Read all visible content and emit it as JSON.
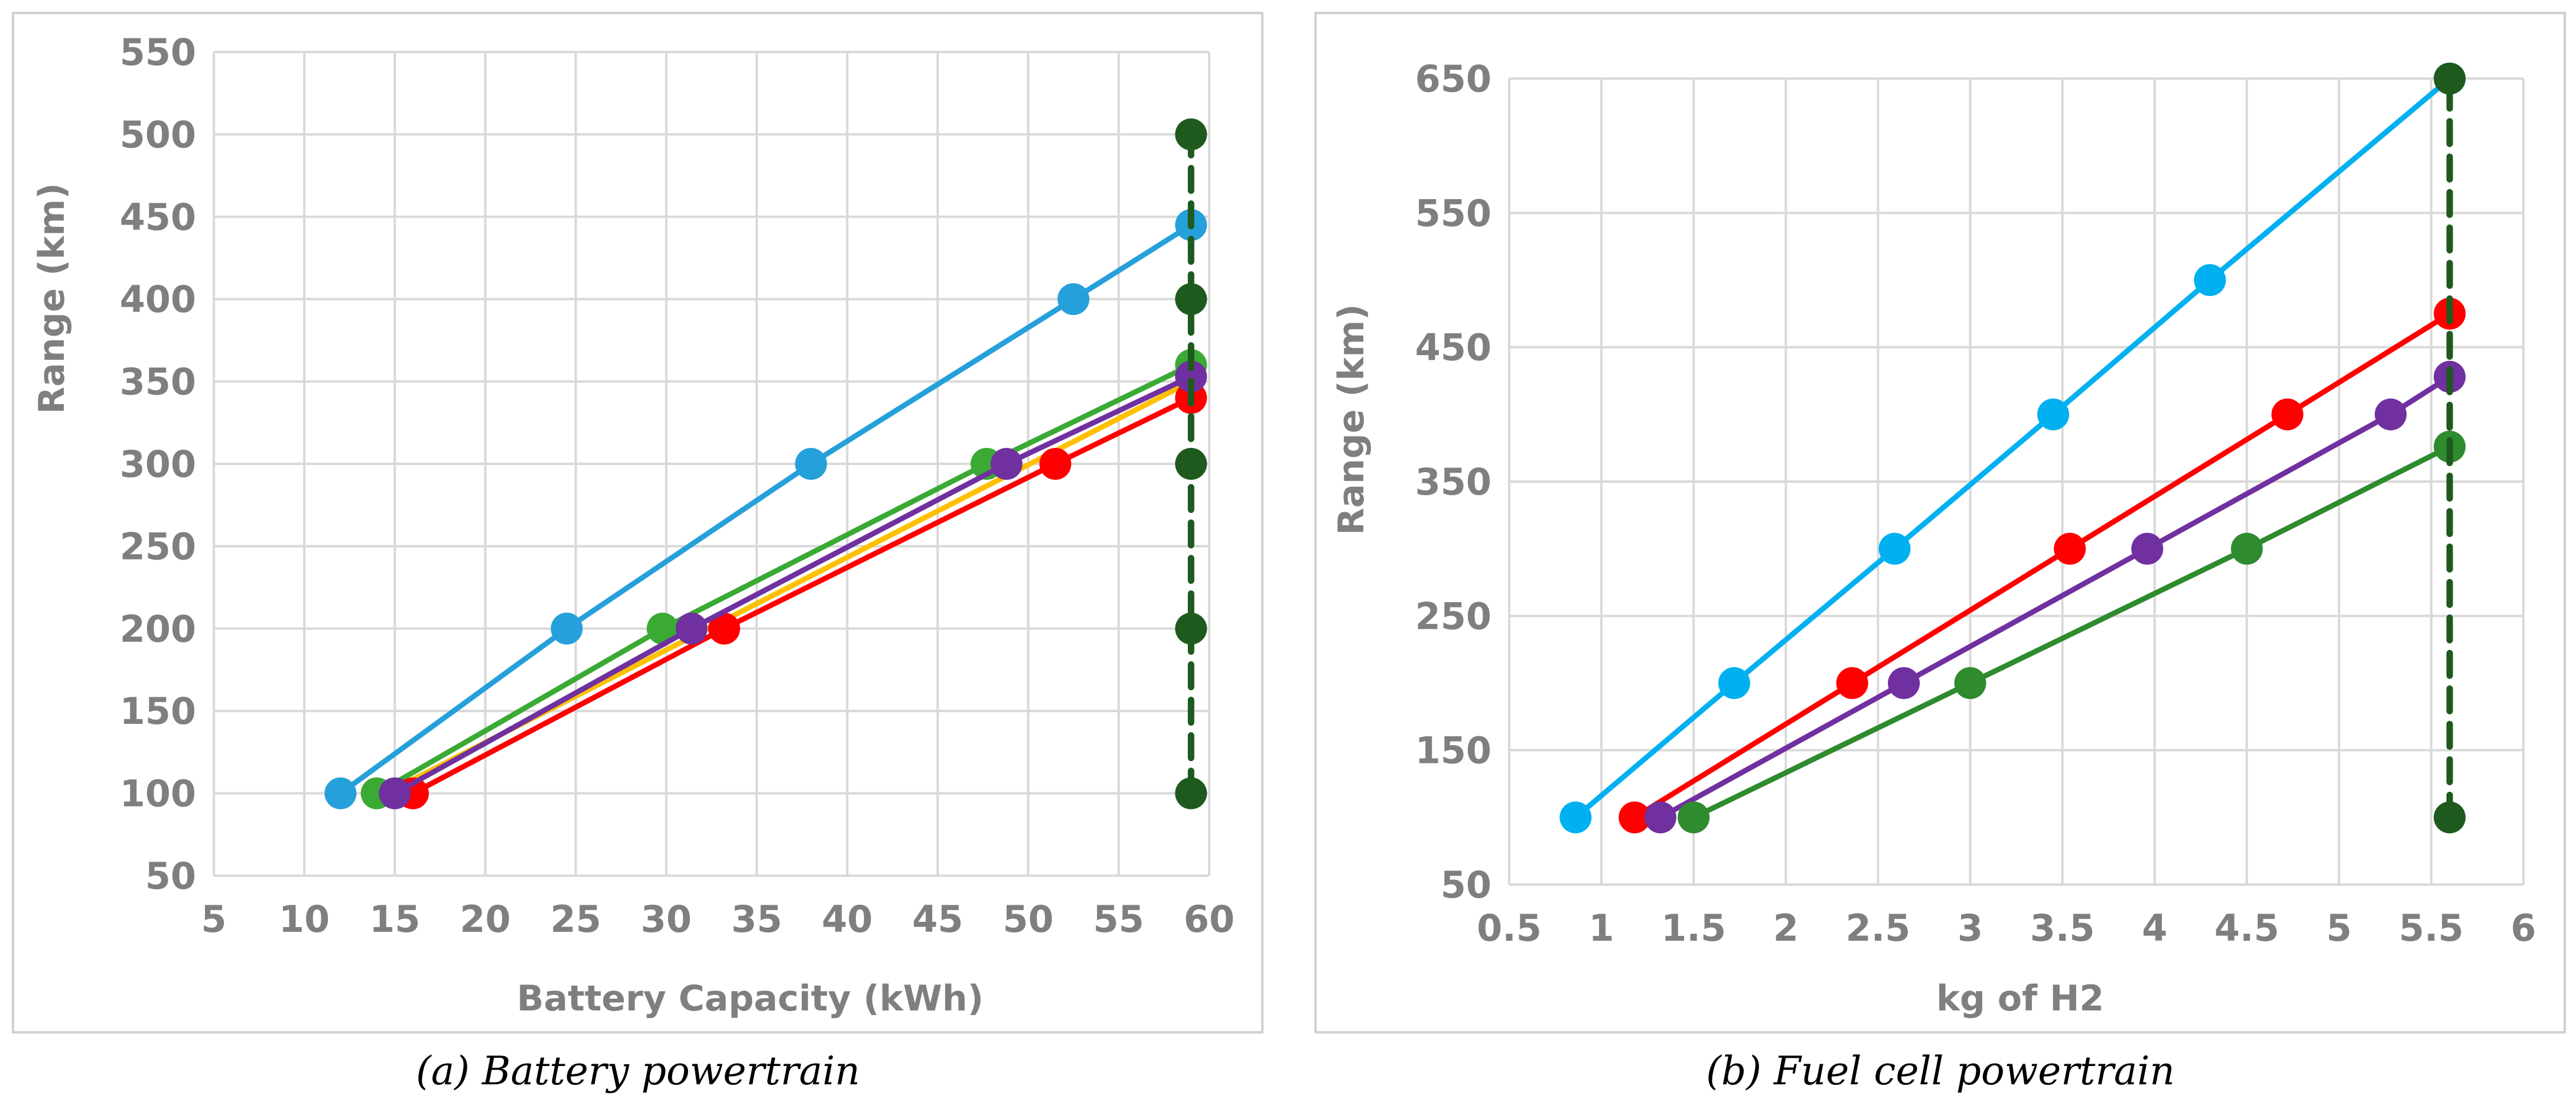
{
  "captions": {
    "a": "(a) Battery powertrain",
    "b": "(b) Fuel cell powertrain"
  },
  "chart_data": [
    {
      "type": "line",
      "id": "a",
      "xlabel": "Battery Capacity (kWh)",
      "ylabel": "Range (km)",
      "xlim": [
        5,
        60
      ],
      "ylim": [
        50,
        550
      ],
      "xticks": [
        "5",
        "10",
        "15",
        "20",
        "25",
        "30",
        "35",
        "40",
        "45",
        "50",
        "55",
        "60"
      ],
      "yticks": [
        "50",
        "100",
        "150",
        "200",
        "250",
        "300",
        "350",
        "400",
        "450",
        "500",
        "550"
      ],
      "grid": true,
      "legend": "none",
      "series": [
        {
          "color": "#26a0da",
          "markers": true,
          "points": [
            [
              12,
              100
            ],
            [
              24.5,
              200
            ],
            [
              38,
              300
            ],
            [
              52.5,
              400
            ],
            [
              59,
              445
            ]
          ]
        },
        {
          "color": "#ffc000",
          "markers": false,
          "points": [
            [
              14.5,
              100
            ],
            [
              59,
              350
            ]
          ]
        },
        {
          "color": "#3aaa35",
          "markers": true,
          "points": [
            [
              14,
              100
            ],
            [
              29.8,
              200
            ],
            [
              47.7,
              300
            ],
            [
              59,
              360
            ]
          ]
        },
        {
          "color": "#ff0000",
          "markers": true,
          "points": [
            [
              16,
              100
            ],
            [
              33.2,
              200
            ],
            [
              51.5,
              300
            ],
            [
              59,
              340
            ]
          ]
        },
        {
          "color": "#7030a0",
          "markers": true,
          "points": [
            [
              15,
              100
            ],
            [
              31.4,
              200
            ],
            [
              48.8,
              300
            ],
            [
              59,
              353
            ]
          ]
        },
        {
          "color": "#1e5a1e",
          "markers": true,
          "dashed": true,
          "points": [
            [
              59,
              100
            ],
            [
              59,
              200
            ],
            [
              59,
              300
            ],
            [
              59,
              400
            ],
            [
              59,
              500
            ]
          ]
        }
      ]
    },
    {
      "type": "line",
      "id": "b",
      "xlabel": "kg of H2",
      "ylabel": "Range (km)",
      "xlim": [
        0.5,
        6
      ],
      "ylim": [
        50,
        650
      ],
      "xticks": [
        "0.5",
        "1",
        "1.5",
        "2",
        "2.5",
        "3",
        "3.5",
        "4",
        "4.5",
        "5",
        "5.5",
        "6"
      ],
      "yticks": [
        "50",
        "150",
        "250",
        "350",
        "450",
        "550",
        "650"
      ],
      "grid": true,
      "legend": "none",
      "series": [
        {
          "color": "#00b0f0",
          "markers": true,
          "points": [
            [
              0.86,
              100
            ],
            [
              1.72,
              200
            ],
            [
              2.59,
              300
            ],
            [
              3.45,
              400
            ],
            [
              4.3,
              500
            ],
            [
              5.6,
              650
            ]
          ]
        },
        {
          "color": "#ff0000",
          "markers": true,
          "points": [
            [
              1.18,
              100
            ],
            [
              2.36,
              200
            ],
            [
              3.54,
              300
            ],
            [
              4.72,
              400
            ],
            [
              5.6,
              475
            ]
          ]
        },
        {
          "color": "#7030a0",
          "markers": true,
          "points": [
            [
              1.32,
              100
            ],
            [
              2.64,
              200
            ],
            [
              3.96,
              300
            ],
            [
              5.28,
              400
            ],
            [
              5.6,
              428
            ]
          ]
        },
        {
          "color": "#2e8b2e",
          "markers": true,
          "points": [
            [
              1.5,
              100
            ],
            [
              3.0,
              200
            ],
            [
              4.5,
              300
            ],
            [
              5.6,
              376
            ]
          ]
        },
        {
          "color": "#1e5a1e",
          "markers": true,
          "dashed": true,
          "points": [
            [
              5.6,
              100
            ],
            [
              5.6,
              650
            ]
          ]
        }
      ]
    }
  ]
}
